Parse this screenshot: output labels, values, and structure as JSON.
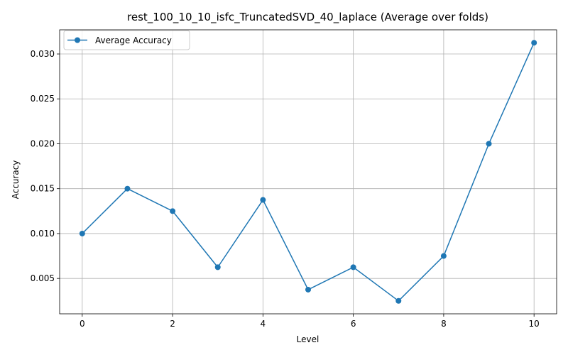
{
  "chart_data": {
    "type": "line",
    "title": "rest_100_10_10_isfc_TruncatedSVD_40_laplace (Average over folds)",
    "xlabel": "Level",
    "ylabel": "Accuracy",
    "x": [
      0,
      1,
      2,
      3,
      4,
      5,
      6,
      7,
      8,
      9,
      10
    ],
    "series": [
      {
        "name": "Average Accuracy",
        "color": "#1f77b4",
        "marker": "circle",
        "values": [
          0.01,
          0.015,
          0.0125,
          0.00625,
          0.01375,
          0.00375,
          0.00625,
          0.0025,
          0.0075,
          0.02,
          0.03125
        ]
      }
    ],
    "xlim": [
      -0.5,
      10.5
    ],
    "ylim": [
      0.00106,
      0.03269
    ],
    "xticks": [
      0,
      2,
      4,
      6,
      8,
      10
    ],
    "xtick_labels": [
      "0",
      "2",
      "4",
      "6",
      "8",
      "10"
    ],
    "yticks": [
      0.005,
      0.01,
      0.015,
      0.02,
      0.025,
      0.03
    ],
    "ytick_labels": [
      "0.005",
      "0.010",
      "0.015",
      "0.020",
      "0.025",
      "0.030"
    ],
    "grid": true,
    "legend_position": "top-left"
  }
}
